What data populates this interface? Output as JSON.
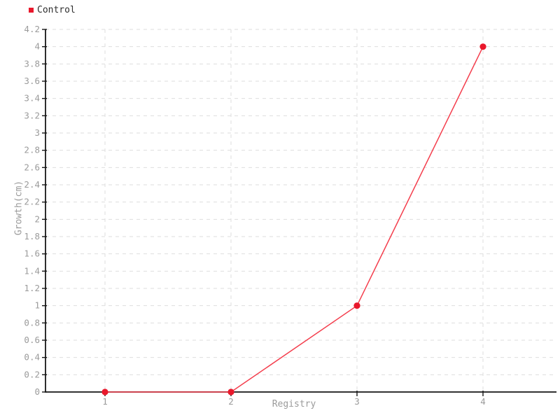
{
  "chart_data": {
    "type": "line",
    "title": "",
    "categories": [
      "1",
      "2",
      "3",
      "4"
    ],
    "series": [
      {
        "name": "Control",
        "values": [
          0,
          0,
          1,
          4
        ],
        "line_color": "#f43d4c",
        "marker_color": "#e9182c",
        "marker_shape": "circle"
      }
    ],
    "xlabel": "Registry",
    "ylabel": "Growth(cm)",
    "ylim": [
      0,
      4.2
    ],
    "y_tick_step": 0.2,
    "y_ticks": [
      "0",
      "0.2",
      "0.4",
      "0.6",
      "0.8",
      "1",
      "1.2",
      "1.4",
      "1.6",
      "1.8",
      "2",
      "2.2",
      "2.4",
      "2.6",
      "2.8",
      "3",
      "3.2",
      "3.4",
      "3.6",
      "3.8",
      "4",
      "4.2"
    ],
    "grid": "dashed",
    "legend_position": "top-left",
    "colors": {
      "axis": "#161616",
      "grid": "#dedede",
      "tick_label": "#9b9b9b",
      "axis_title": "#9b9b9b",
      "legend_text": "#2e2e2e",
      "background": "#ffffff"
    }
  }
}
